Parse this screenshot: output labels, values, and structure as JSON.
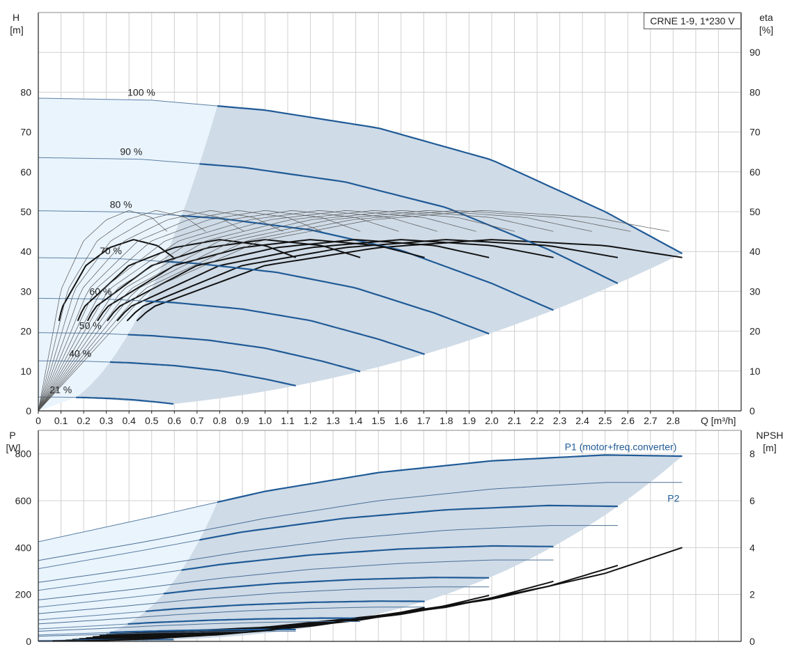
{
  "chart_data": [
    {
      "type": "line",
      "model_label": "CRNE 1-9, 1*230 V",
      "ylabel_left": "H",
      "ylabel_left_unit": "[m]",
      "ylabel_right": "eta",
      "ylabel_right_unit": "[%]",
      "xlabel": "Q [m³/h]",
      "xlim": [
        0,
        3.1
      ],
      "ylim": [
        0,
        100
      ],
      "ylim_right": [
        0,
        100
      ],
      "x_ticks": [
        0,
        0.1,
        0.2,
        0.3,
        0.4,
        0.5,
        0.6,
        0.7,
        0.8,
        0.9,
        1.0,
        1.1,
        1.2,
        1.3,
        1.4,
        1.5,
        1.6,
        1.7,
        1.8,
        1.9,
        2.0,
        2.1,
        2.2,
        2.3,
        2.4,
        2.5,
        2.6,
        2.7,
        2.8
      ],
      "x_tick_labels": [
        "0",
        "0.1",
        "0.2",
        "0.3",
        "0.4",
        "0.5",
        "0.6",
        "0.7",
        "0.8",
        "0.9",
        "1.0",
        "1.1",
        "1.2",
        "1.3",
        "1.4",
        "1.5",
        "1.6",
        "1.7",
        "1.8",
        "1.9",
        "2.0",
        "2.1",
        "2.2",
        "2.3",
        "2.4",
        "2.5",
        "2.6",
        "2.7",
        "2.8"
      ],
      "y_ticks_left": [
        0,
        10,
        20,
        30,
        40,
        50,
        60,
        70,
        80
      ],
      "y_ticks_right": [
        0,
        10,
        20,
        30,
        40,
        50,
        60,
        70,
        80,
        90
      ],
      "grid": true,
      "series": [
        {
          "name": "100 %",
          "speed": 1.0,
          "values": [
            [
              0,
              78.5
            ],
            [
              0.5,
              78.0
            ],
            [
              1.0,
              75.5
            ],
            [
              1.5,
              71.0
            ],
            [
              2.0,
              63.0
            ],
            [
              2.5,
              50.0
            ],
            [
              2.84,
              39.5
            ]
          ]
        },
        {
          "name": "90 %",
          "speed": 0.9
        },
        {
          "name": "80 %",
          "speed": 0.8
        },
        {
          "name": "70 %",
          "speed": 0.7
        },
        {
          "name": "60 %",
          "speed": 0.6
        },
        {
          "name": "50 %",
          "speed": 0.5
        },
        {
          "name": "40 %",
          "speed": 0.4
        },
        {
          "name": "21 %",
          "speed": 0.21
        }
      ],
      "efficiency_full_speed": {
        "values": [
          [
            0,
            0
          ],
          [
            0.5,
            26
          ],
          [
            1.0,
            36.5
          ],
          [
            1.5,
            41
          ],
          [
            2.0,
            43
          ],
          [
            2.5,
            41.5
          ],
          [
            2.84,
            38.5
          ]
        ]
      }
    },
    {
      "type": "line",
      "ylabel_left": "P",
      "ylabel_left_unit": "[W]",
      "ylabel_right": "NPSH",
      "ylabel_right_unit": "[m]",
      "xlim": [
        0,
        3.1
      ],
      "ylim": [
        0,
        900
      ],
      "ylim_right": [
        0,
        9
      ],
      "y_ticks_left": [
        0,
        200,
        400,
        600,
        800
      ],
      "y_ticks_right": [
        0,
        2,
        4,
        6,
        8
      ],
      "grid": true,
      "series": [
        {
          "name": "P1 (motor+freq.converter)",
          "values": [
            [
              0,
              425
            ],
            [
              0.5,
              530
            ],
            [
              1.0,
              640
            ],
            [
              1.5,
              720
            ],
            [
              2.0,
              770
            ],
            [
              2.5,
              795
            ],
            [
              2.84,
              790
            ]
          ]
        },
        {
          "name": "P2",
          "values": [
            [
              0,
              345
            ],
            [
              0.5,
              430
            ],
            [
              1.0,
              525
            ],
            [
              1.5,
              600
            ],
            [
              2.0,
              650
            ],
            [
              2.5,
              678
            ],
            [
              2.84,
              678
            ]
          ]
        }
      ],
      "npsh_full_speed": {
        "values": [
          [
            0.3,
            0.3
          ],
          [
            1.0,
            0.6
          ],
          [
            1.5,
            1.1
          ],
          [
            2.0,
            1.8
          ],
          [
            2.5,
            2.9
          ],
          [
            2.84,
            4.0
          ]
        ]
      }
    }
  ]
}
